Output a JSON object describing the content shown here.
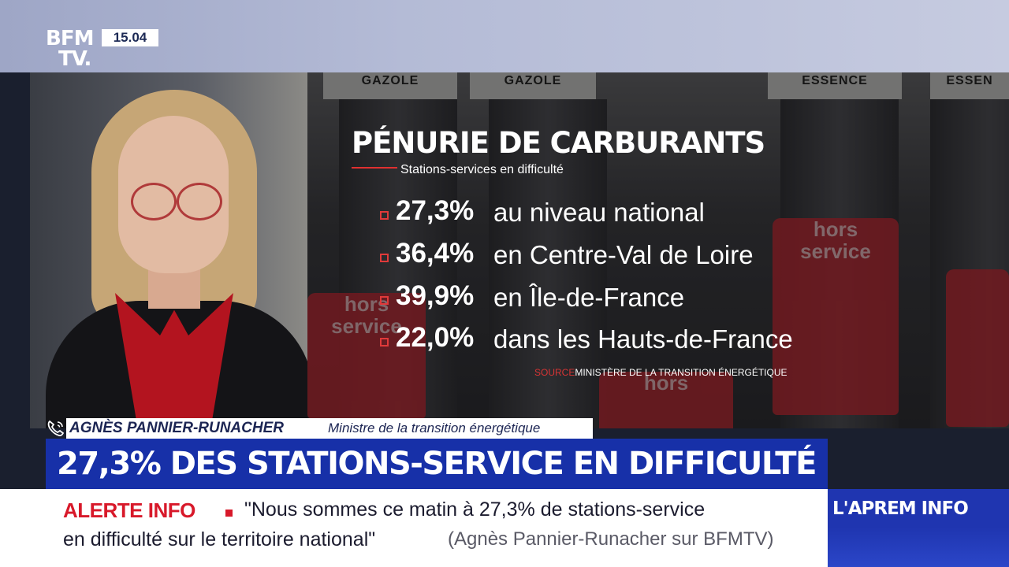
{
  "channel": {
    "logo_line1": "BFM",
    "logo_line2": "TV.",
    "time": "15.04"
  },
  "scene": {
    "pump_labels": [
      "GAZOLE",
      "GAZOLE",
      "ESSENCE",
      "ESSEN"
    ],
    "bag_text_1": "hors",
    "bag_text_2": "service"
  },
  "infographic": {
    "title": "PÉNURIE DE CARBURANTS",
    "subtitle": "Stations-services en difficulté",
    "stats": [
      {
        "value": "27,3%",
        "label": "au niveau national"
      },
      {
        "value": "36,4%",
        "label": "en Centre-Val de Loire"
      },
      {
        "value": "39,9%",
        "label": "en Île-de-France"
      },
      {
        "value": "22,0%",
        "label": "dans les Hauts-de-France"
      }
    ],
    "source_label": "SOURCE",
    "source": "MINISTÈRE DE LA TRANSITION ÉNERGÉTIQUE"
  },
  "speaker": {
    "name": "AGNÈS PANNIER-RUNACHER",
    "role": "Ministre de la transition énergétique"
  },
  "headline": "27,3% DES STATIONS-SERVICE EN DIFFICULTÉ",
  "ticker": {
    "alert_label": "ALERTE INFO",
    "line1": "\"Nous sommes ce matin à 27,3% de stations-service",
    "line2": "en difficulté sur le territoire national\"",
    "attribution": "(Agnès Pannier-Runacher sur BFMTV)"
  },
  "show_name": "L'APREM INFO",
  "colors": {
    "headline_blue": "#1730a8",
    "alert_red": "#d8192a",
    "navy_text": "#1c2553"
  },
  "icons": {
    "speaker_icon": "phone-icon"
  }
}
